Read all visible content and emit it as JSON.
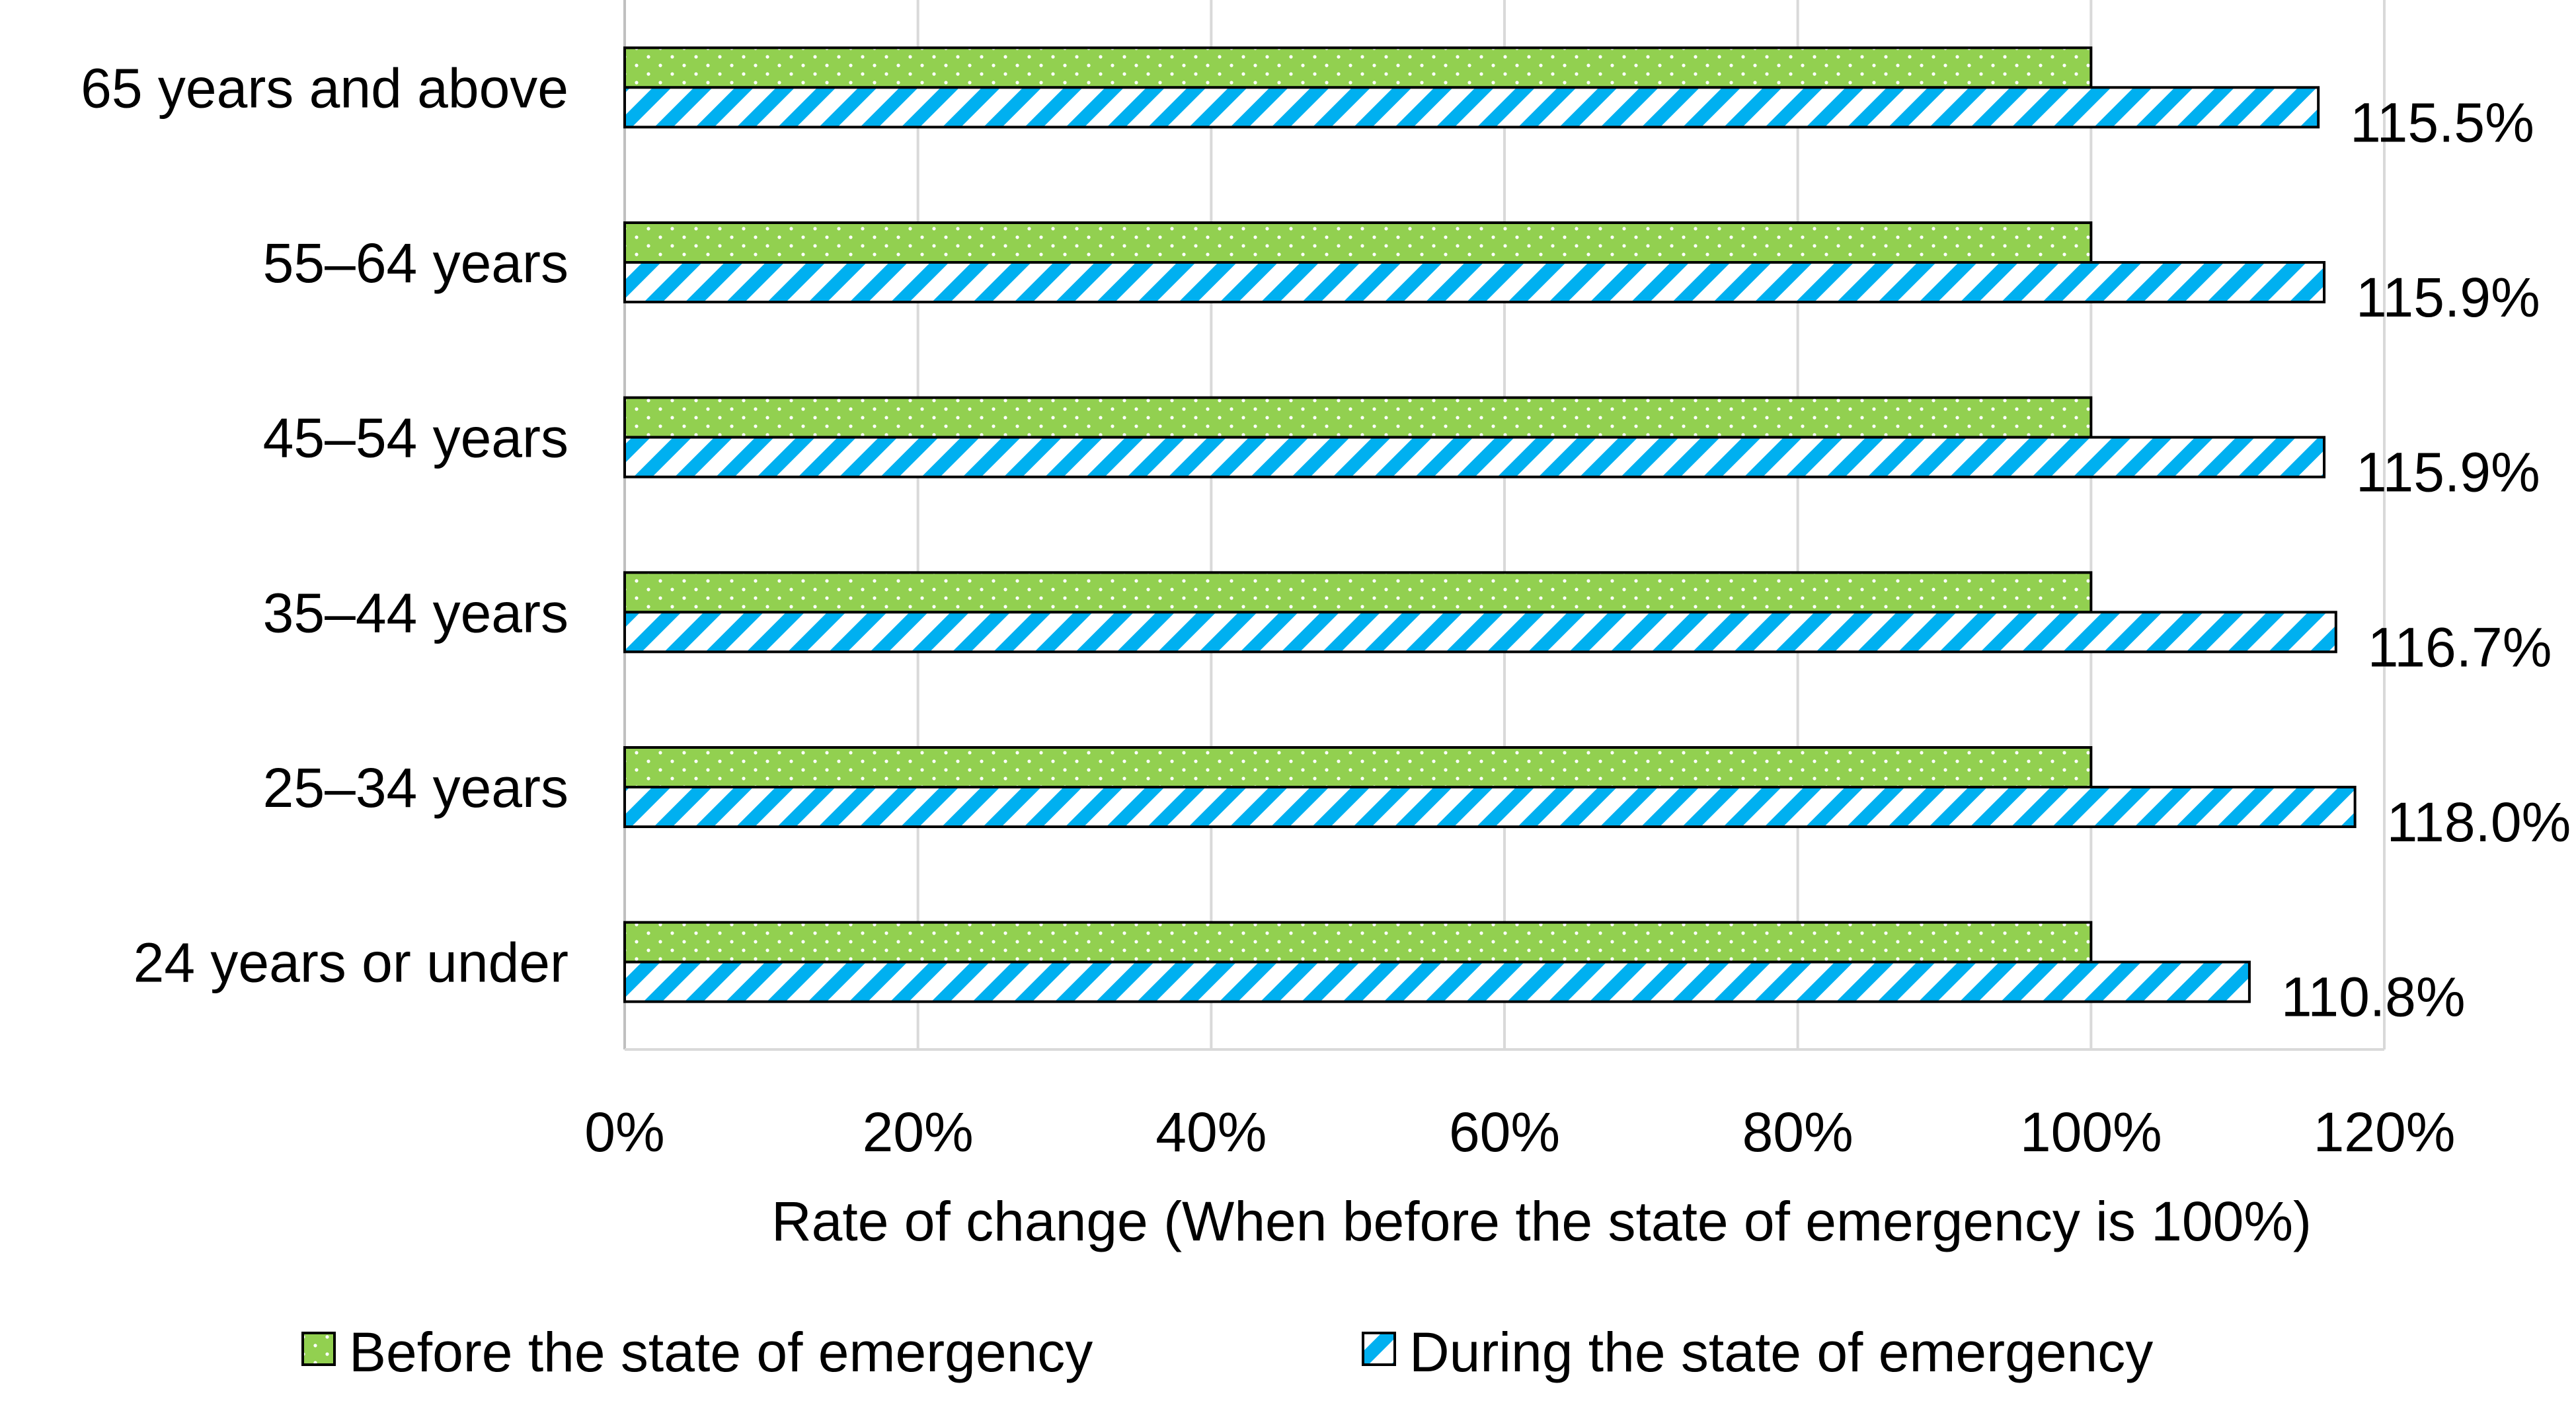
{
  "chart_data": {
    "type": "bar",
    "orientation": "horizontal",
    "categories": [
      "65 years and above",
      "55–64 years",
      "45–54 years",
      "35–44 years",
      "25–34 years",
      "24 years or under"
    ],
    "series": [
      {
        "name": "Before the state of emergency",
        "values": [
          100,
          100,
          100,
          100,
          100,
          100
        ],
        "color": "#92d050",
        "pattern": "dots"
      },
      {
        "name": "During the state of emergency",
        "values": [
          115.5,
          115.9,
          115.9,
          116.7,
          118.0,
          110.8
        ],
        "color": "#00b0f0",
        "pattern": "diagonal-stripes"
      }
    ],
    "data_labels": [
      "115.5%",
      "115.9%",
      "115.9%",
      "116.7%",
      "118.0%",
      "110.8%"
    ],
    "xlabel": "Rate of change (When before the state of emergency is 100%)",
    "ylabel": "",
    "xlim": [
      0,
      120
    ],
    "xticks": [
      "0%",
      "20%",
      "40%",
      "60%",
      "80%",
      "100%",
      "120%"
    ],
    "grid": true,
    "legend_position": "bottom"
  }
}
